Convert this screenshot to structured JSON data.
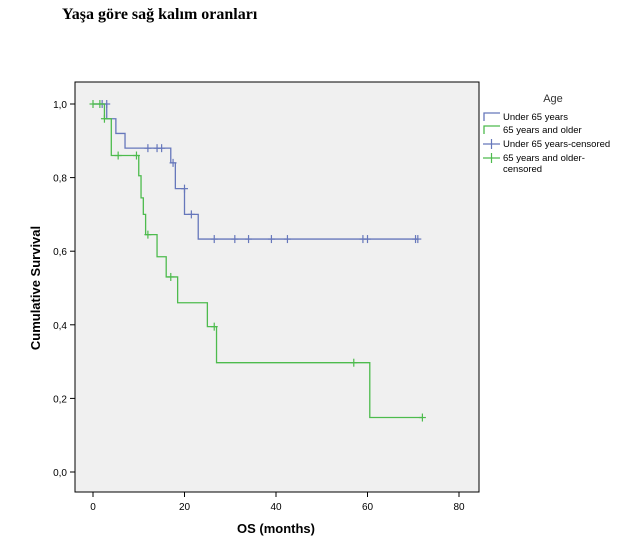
{
  "page": {
    "heading": "Yaşa göre sağ kalım oranları"
  },
  "chart_data": {
    "type": "line",
    "subtype": "kaplan-meier-step",
    "title": "",
    "xlabel": "OS (months)",
    "ylabel": "Cumulative Survival",
    "xlim": [
      0,
      80
    ],
    "ylim": [
      0.0,
      1.0
    ],
    "x_ticks": [
      "0",
      "20",
      "40",
      "60",
      "80"
    ],
    "y_ticks": [
      "0,0",
      "0,2",
      "0,4",
      "0,6",
      "0,8",
      "1,0"
    ],
    "grid": false,
    "plot_background": "#f0f0f0",
    "legend": {
      "title": "Age",
      "placement": "right",
      "entries": [
        {
          "label": "Under 65 years",
          "kind": "line",
          "color": "#6677bb"
        },
        {
          "label": "65 years and older",
          "kind": "line",
          "color": "#4dbb4d"
        },
        {
          "label": "Under 65 years-censored",
          "kind": "censor",
          "color": "#6677bb"
        },
        {
          "label": "65 years and older-censored",
          "display": [
            "65 years and older-",
            "censored"
          ],
          "kind": "censor",
          "color": "#4dbb4d"
        }
      ]
    },
    "series": [
      {
        "name": "Under 65 years",
        "color": "#6677bb",
        "steps": [
          [
            0,
            1.0
          ],
          [
            3,
            0.96
          ],
          [
            5,
            0.92
          ],
          [
            7,
            0.88
          ],
          [
            17,
            0.84
          ],
          [
            18,
            0.77
          ],
          [
            20,
            0.7
          ],
          [
            23,
            0.633
          ],
          [
            71,
            0.633
          ]
        ],
        "censored": [
          [
            2,
            1.0
          ],
          [
            3,
            1.0
          ],
          [
            12,
            0.88
          ],
          [
            14,
            0.88
          ],
          [
            15,
            0.88
          ],
          [
            17.5,
            0.84
          ],
          [
            20,
            0.77
          ],
          [
            21.5,
            0.7
          ],
          [
            26.5,
            0.633
          ],
          [
            31,
            0.633
          ],
          [
            34,
            0.633
          ],
          [
            39,
            0.633
          ],
          [
            42.5,
            0.633
          ],
          [
            59,
            0.633
          ],
          [
            60,
            0.633
          ],
          [
            70.5,
            0.633
          ],
          [
            71,
            0.633
          ]
        ]
      },
      {
        "name": "65 years and older",
        "color": "#4dbb4d",
        "steps": [
          [
            0,
            1.0
          ],
          [
            2.5,
            0.96
          ],
          [
            4,
            0.86
          ],
          [
            10,
            0.805
          ],
          [
            10.5,
            0.745
          ],
          [
            11,
            0.7
          ],
          [
            11.5,
            0.645
          ],
          [
            14,
            0.585
          ],
          [
            16,
            0.53
          ],
          [
            18.5,
            0.46
          ],
          [
            25,
            0.395
          ],
          [
            27,
            0.297
          ],
          [
            60.5,
            0.148
          ],
          [
            72,
            0.148
          ]
        ],
        "censored": [
          [
            0,
            1.0
          ],
          [
            1.5,
            1.0
          ],
          [
            2.5,
            0.96
          ],
          [
            5.5,
            0.86
          ],
          [
            9.5,
            0.86
          ],
          [
            12,
            0.645
          ],
          [
            17,
            0.53
          ],
          [
            26.5,
            0.395
          ],
          [
            57,
            0.297
          ],
          [
            72,
            0.148
          ]
        ]
      }
    ]
  }
}
